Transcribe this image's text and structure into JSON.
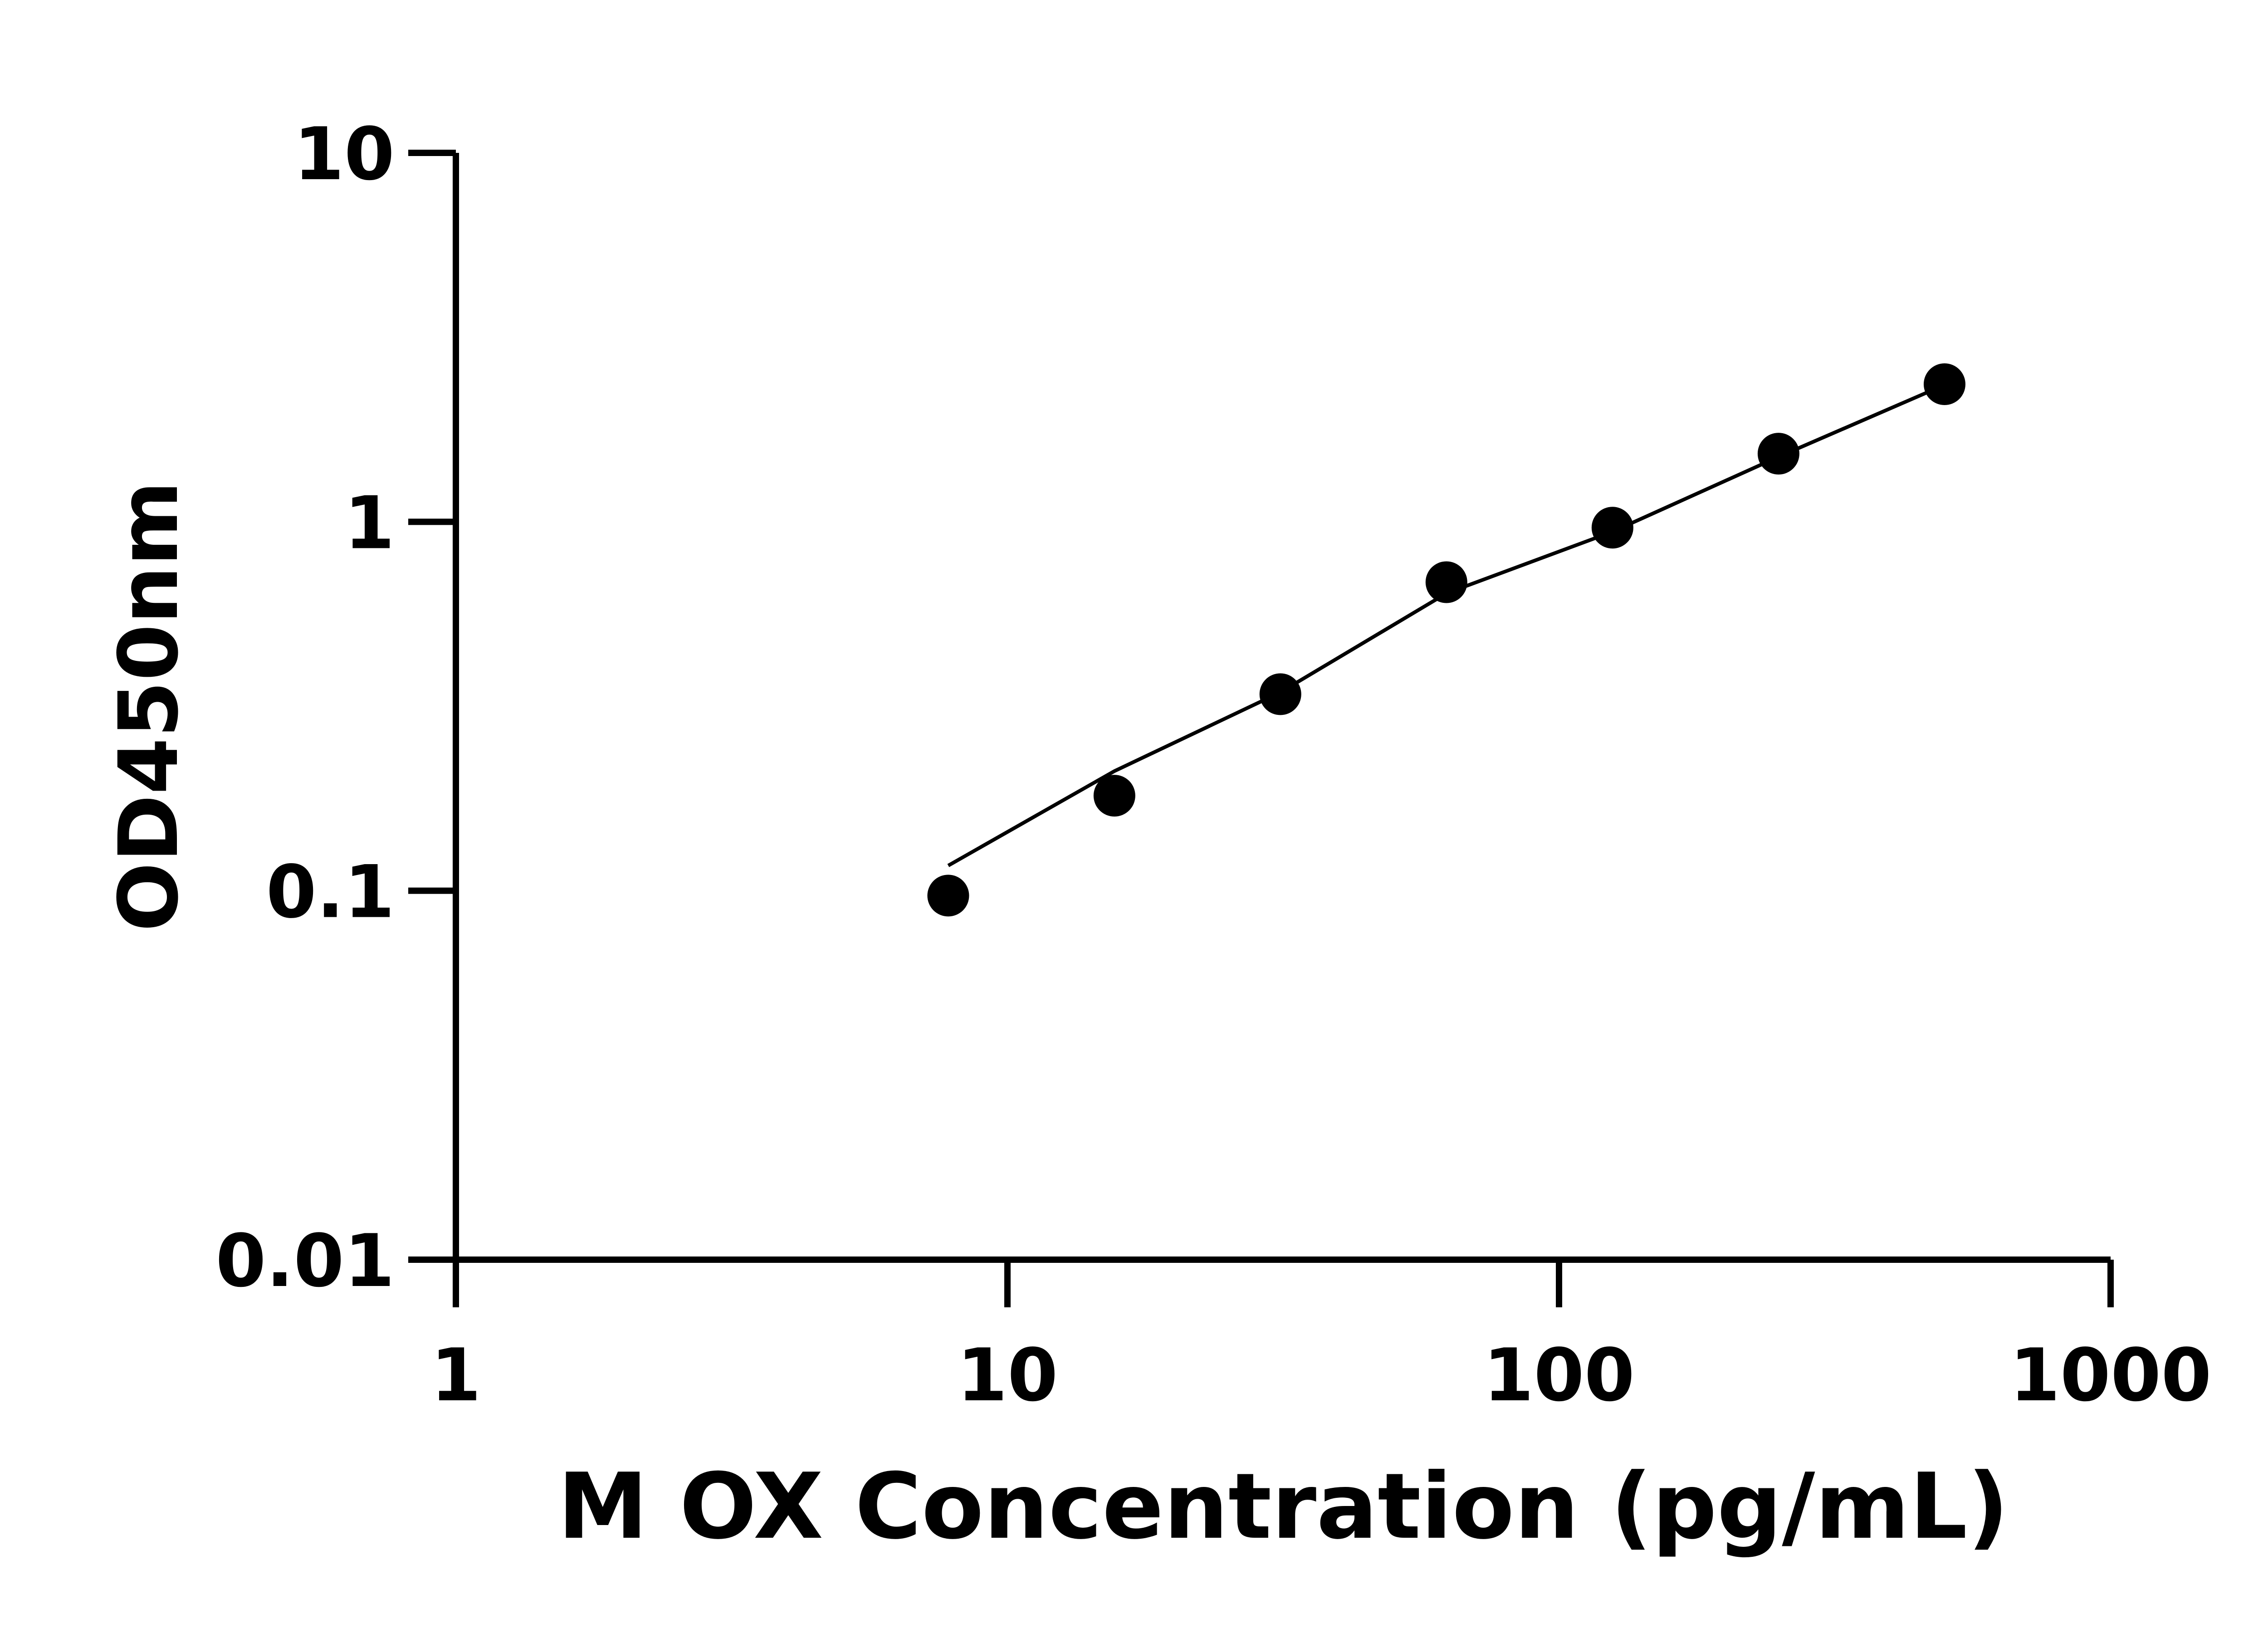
{
  "chart_data": {
    "type": "scatter",
    "title": "",
    "xlabel": "M OX Concentration (pg/mL)",
    "ylabel": "OD450nm",
    "x_scale": "log",
    "y_scale": "log",
    "xlim": [
      1,
      1000
    ],
    "ylim": [
      0.01,
      10
    ],
    "x_ticks": [
      1,
      10,
      100,
      1000
    ],
    "x_tick_labels": [
      "1",
      "10",
      "100",
      "1000"
    ],
    "y_ticks": [
      0.01,
      0.1,
      1,
      10
    ],
    "y_tick_labels": [
      "0.01",
      "0.1",
      "1",
      "10"
    ],
    "grid": false,
    "legend": "none",
    "series": [
      {
        "kind": "points",
        "color": "#000000",
        "x": [
          7.81,
          15.63,
          31.25,
          62.5,
          125,
          250,
          500
        ],
        "y": [
          0.097,
          0.181,
          0.341,
          0.686,
          0.964,
          1.53,
          2.36
        ]
      },
      {
        "kind": "fit-line",
        "color": "#000000",
        "x": [
          7.81,
          15.63,
          31.25,
          62.5,
          125,
          250,
          500
        ],
        "y": [
          0.117,
          0.211,
          0.345,
          0.64,
          0.94,
          1.5,
          2.35
        ]
      }
    ]
  }
}
